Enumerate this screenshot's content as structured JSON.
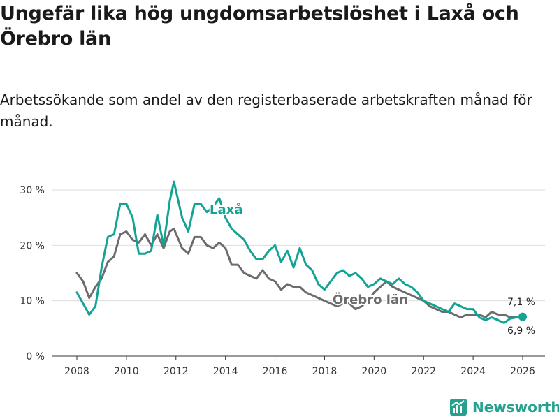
{
  "title": "Ungefär lika hög ungdomsarbetslöshet i Laxå och Örebro län",
  "subtitle": "Arbetssökande som andel av den registerbaserade arbetskraften månad för månad.",
  "brand": "Newsworthy",
  "colors": {
    "laxa": "#13a394",
    "orebro": "#6d6b6f",
    "grid": "#dddddd",
    "axis": "#333333",
    "brand": "#25a18e"
  },
  "chart_data": {
    "type": "line",
    "title": "Ungefär lika hög ungdomsarbetslöshet i Laxå och Örebro län",
    "xlabel": "",
    "ylabel": "",
    "xlim": [
      2007.5,
      2026.9
    ],
    "ylim": [
      0,
      30
    ],
    "y_ticks": [
      0,
      10,
      20,
      30
    ],
    "y_tick_labels": [
      "0 %",
      "10 %",
      "20 %",
      "30 %"
    ],
    "x_ticks": [
      2008,
      2010,
      2012,
      2014,
      2016,
      2018,
      2020,
      2022,
      2024,
      2026
    ],
    "x_tick_labels": [
      "2008",
      "2010",
      "2012",
      "2014",
      "2016",
      "2018",
      "2020",
      "2022",
      "2024",
      "2026"
    ],
    "series": [
      {
        "name": "Laxå",
        "x": [
          2008.0,
          2008.25,
          2008.5,
          2008.75,
          2009.0,
          2009.25,
          2009.5,
          2009.75,
          2010.0,
          2010.25,
          2010.5,
          2010.75,
          2011.0,
          2011.25,
          2011.5,
          2011.75,
          2011.92,
          2012.25,
          2012.5,
          2012.75,
          2013.0,
          2013.25,
          2013.5,
          2013.75,
          2014.0,
          2014.25,
          2014.5,
          2014.75,
          2015.0,
          2015.25,
          2015.5,
          2015.75,
          2016.0,
          2016.25,
          2016.5,
          2016.75,
          2017.0,
          2017.25,
          2017.5,
          2017.75,
          2018.0,
          2018.25,
          2018.5,
          2018.75,
          2019.0,
          2019.25,
          2019.5,
          2019.75,
          2020.0,
          2020.25,
          2020.5,
          2020.75,
          2021.0,
          2021.25,
          2021.5,
          2021.75,
          2022.0,
          2022.25,
          2022.5,
          2022.75,
          2023.0,
          2023.25,
          2023.5,
          2023.75,
          2024.0,
          2024.25,
          2024.5,
          2024.75,
          2025.0,
          2025.25,
          2025.5,
          2025.75,
          2026.0
        ],
        "values": [
          11.5,
          9.5,
          7.5,
          9.0,
          16.0,
          21.5,
          22.0,
          27.5,
          27.5,
          25.0,
          18.5,
          18.5,
          19.0,
          25.5,
          20.0,
          28.0,
          31.5,
          25.0,
          22.5,
          27.5,
          27.5,
          26.0,
          27.0,
          28.5,
          25.0,
          23.0,
          22.0,
          21.0,
          19.0,
          17.5,
          17.5,
          19.0,
          20.0,
          17.0,
          19.0,
          16.0,
          19.5,
          16.5,
          15.5,
          13.0,
          12.0,
          13.5,
          15.0,
          15.5,
          14.5,
          15.0,
          14.0,
          12.5,
          13.0,
          14.0,
          13.5,
          13.0,
          14.0,
          13.0,
          12.5,
          11.5,
          10.0,
          9.5,
          9.0,
          8.5,
          8.0,
          9.5,
          9.0,
          8.5,
          8.5,
          7.0,
          6.5,
          7.0,
          6.5,
          6.0,
          6.8,
          7.0,
          7.1
        ]
      },
      {
        "name": "Örebro län",
        "x": [
          2008.0,
          2008.25,
          2008.5,
          2008.75,
          2009.0,
          2009.25,
          2009.5,
          2009.75,
          2010.0,
          2010.25,
          2010.5,
          2010.75,
          2011.0,
          2011.25,
          2011.5,
          2011.75,
          2011.92,
          2012.25,
          2012.5,
          2012.75,
          2013.0,
          2013.25,
          2013.5,
          2013.75,
          2014.0,
          2014.25,
          2014.5,
          2014.75,
          2015.0,
          2015.25,
          2015.5,
          2015.75,
          2016.0,
          2016.25,
          2016.5,
          2016.75,
          2017.0,
          2017.25,
          2017.5,
          2017.75,
          2018.0,
          2018.25,
          2018.5,
          2018.75,
          2019.0,
          2019.25,
          2019.5,
          2019.75,
          2020.0,
          2020.25,
          2020.5,
          2020.75,
          2021.0,
          2021.25,
          2021.5,
          2021.75,
          2022.0,
          2022.25,
          2022.5,
          2022.75,
          2023.0,
          2023.25,
          2023.5,
          2023.75,
          2024.0,
          2024.25,
          2024.5,
          2024.75,
          2025.0,
          2025.25,
          2025.5,
          2025.75,
          2026.0
        ],
        "values": [
          15.0,
          13.5,
          10.5,
          12.5,
          14.0,
          17.0,
          18.0,
          22.0,
          22.5,
          21.0,
          20.5,
          22.0,
          20.0,
          22.0,
          19.5,
          22.5,
          23.0,
          19.5,
          18.5,
          21.5,
          21.5,
          20.0,
          19.5,
          20.5,
          19.5,
          16.5,
          16.5,
          15.0,
          14.5,
          14.0,
          15.5,
          14.0,
          13.5,
          12.0,
          13.0,
          12.5,
          12.5,
          11.5,
          11.0,
          10.5,
          10.0,
          9.5,
          9.0,
          9.5,
          9.5,
          8.5,
          9.0,
          10.0,
          11.5,
          12.5,
          13.5,
          12.5,
          12.0,
          11.5,
          11.0,
          10.5,
          10.0,
          9.0,
          8.5,
          8.0,
          8.0,
          7.5,
          7.0,
          7.5,
          7.5,
          7.5,
          7.0,
          8.0,
          7.5,
          7.5,
          7.0,
          7.0,
          6.9
        ]
      }
    ],
    "annotations": [
      {
        "text": "Laxå",
        "series": "Laxå"
      },
      {
        "text": "Örebro län",
        "series": "Örebro län"
      },
      {
        "text": "7,1 %",
        "series": "Laxå",
        "x": 2026.0
      },
      {
        "text": "6,9 %",
        "series": "Örebro län",
        "x": 2026.0
      }
    ]
  }
}
